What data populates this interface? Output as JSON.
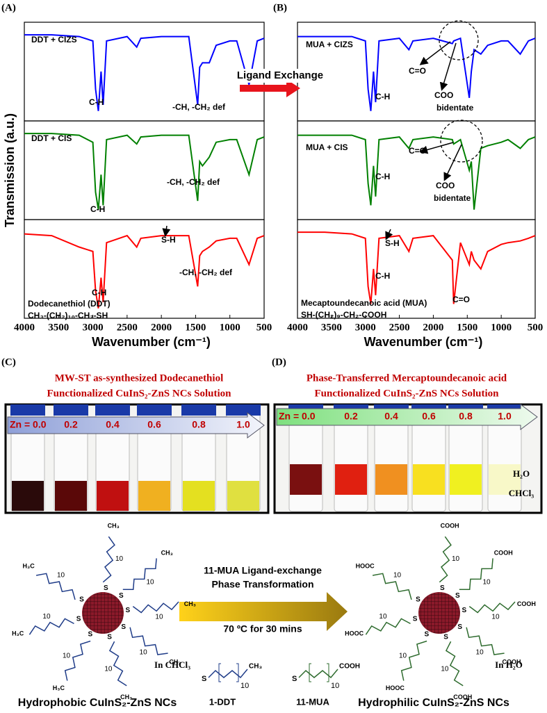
{
  "panel_labels": [
    "(A)",
    "(B)",
    "(C)",
    "(D)"
  ],
  "chart_data": [
    {
      "type": "line",
      "y_label": "Transmission (a.u.)",
      "x_label": "Wavenumber (cm⁻¹)",
      "xlim": [
        4000,
        500
      ],
      "ylim": [
        0,
        1
      ],
      "xticks": [
        4000,
        3500,
        3000,
        2500,
        2000,
        1500,
        1000,
        500
      ],
      "x": [
        4000,
        3600,
        3200,
        3000,
        2960,
        2920,
        2880,
        2850,
        2800,
        2500,
        2360,
        2300,
        2000,
        1720,
        1700,
        1600,
        1470,
        1440,
        1400,
        1300,
        1200,
        1000,
        900,
        720,
        600,
        500
      ],
      "series": [
        {
          "name": "DDT + CIZS",
          "color": "#0000ff",
          "annotations": [
            "C-H",
            "-CH, -CH₂ def"
          ],
          "values": [
            0.92,
            0.92,
            0.9,
            0.85,
            0.3,
            0.05,
            0.5,
            0.12,
            0.85,
            0.9,
            0.78,
            0.88,
            0.9,
            0.9,
            0.9,
            0.9,
            0.12,
            0.55,
            0.6,
            0.6,
            0.8,
            0.85,
            0.85,
            0.35,
            0.85,
            0.88
          ]
        },
        {
          "name": "DDT + CIS",
          "color": "#008000",
          "annotations": [
            "C-H",
            "-CH, -CH₂ def"
          ],
          "values": [
            0.92,
            0.92,
            0.9,
            0.82,
            0.25,
            0.05,
            0.45,
            0.1,
            0.85,
            0.9,
            0.8,
            0.88,
            0.9,
            0.9,
            0.9,
            0.9,
            0.15,
            0.6,
            0.55,
            0.65,
            0.82,
            0.85,
            0.85,
            0.45,
            0.85,
            0.88
          ]
        },
        {
          "name": "Dodecanethiol (DDT)",
          "formula": "CH₃-(CH₂)₁₀-CH₂-SH",
          "color": "#ff0000",
          "annotations": [
            "S-H",
            "C-H",
            "-CH, -CH₂ def"
          ],
          "values": [
            0.9,
            0.88,
            0.75,
            0.7,
            0.25,
            0.05,
            0.4,
            0.12,
            0.8,
            0.88,
            0.75,
            0.85,
            0.88,
            0.88,
            0.88,
            0.88,
            0.3,
            0.65,
            0.7,
            0.75,
            0.82,
            0.85,
            0.85,
            0.55,
            0.85,
            0.88
          ]
        }
      ]
    },
    {
      "type": "line",
      "x_label": "Wavenumber (cm⁻¹)",
      "xlim": [
        4000,
        500
      ],
      "ylim": [
        0,
        1
      ],
      "xticks": [
        4000,
        3500,
        3000,
        2500,
        2000,
        1500,
        1000,
        500
      ],
      "x": [
        4000,
        3600,
        3200,
        3000,
        2960,
        2920,
        2880,
        2850,
        2800,
        2500,
        2360,
        2300,
        2000,
        1720,
        1700,
        1600,
        1470,
        1440,
        1400,
        1300,
        1200,
        1000,
        900,
        720,
        600,
        500
      ],
      "series": [
        {
          "name": "MUA + CIZS",
          "color": "#0000ff",
          "annotations": [
            "C=O",
            "COO",
            "bidentate",
            "C-H"
          ],
          "values": [
            0.9,
            0.9,
            0.9,
            0.85,
            0.3,
            0.05,
            0.5,
            0.15,
            0.85,
            0.88,
            0.75,
            0.85,
            0.88,
            0.82,
            0.85,
            0.88,
            0.2,
            0.5,
            0.75,
            0.7,
            0.8,
            0.85,
            0.85,
            0.7,
            0.85,
            0.88
          ]
        },
        {
          "name": "MUA + CIS",
          "color": "#008000",
          "annotations": [
            "C=O",
            "C-H",
            "COO",
            "bidentate"
          ],
          "values": [
            0.9,
            0.9,
            0.9,
            0.85,
            0.35,
            0.1,
            0.55,
            0.2,
            0.85,
            0.88,
            0.75,
            0.85,
            0.88,
            0.85,
            0.8,
            0.85,
            0.5,
            0.6,
            0.05,
            0.75,
            0.78,
            0.82,
            0.85,
            0.75,
            0.85,
            0.88
          ]
        },
        {
          "name": "Mecaptoundecanoic acid (MUA)",
          "formula": "SH-(CH₂)₉-CH₂-COOH",
          "color": "#ff0000",
          "annotations": [
            "S-H",
            "C-H",
            "C=O"
          ],
          "values": [
            0.92,
            0.92,
            0.9,
            0.85,
            0.3,
            0.1,
            0.5,
            0.2,
            0.85,
            0.88,
            0.7,
            0.85,
            0.88,
            0.6,
            0.1,
            0.8,
            0.55,
            0.7,
            0.6,
            0.5,
            0.7,
            0.78,
            0.8,
            0.82,
            0.85,
            0.88
          ]
        }
      ]
    }
  ],
  "ligand_exchange": "Ligand Exchange",
  "photos": [
    {
      "title": [
        "MW-ST as-synthesized Dodecanethiol",
        "Functionalized CuInS₂-ZnS NCs Solution"
      ],
      "zn_labels": [
        "Zn = 0.0",
        "0.2",
        "0.4",
        "0.6",
        "0.8",
        "1.0"
      ],
      "vial_colors": [
        "#2a0a0a",
        "#5a0808",
        "#c01010",
        "#f0b020",
        "#e4e020",
        "#e0e040"
      ]
    },
    {
      "title": [
        "Phase-Transferred Mercaptoundecanoic acid",
        "Functionalized CuInS₂-ZnS NCs Solution"
      ],
      "zn_labels": [
        "Zn = 0.0",
        "0.2",
        "0.4",
        "0.6",
        "0.8",
        "1.0"
      ],
      "vial_colors": [
        "#7a1010",
        "#e02010",
        "#f09020",
        "#f8e020",
        "#f0f020",
        "#f8f8c8"
      ],
      "layers": [
        "H₂O",
        "CHCl₃"
      ]
    }
  ],
  "scheme": {
    "condition": [
      "11-MUA Ligand-exchange",
      "Phase Transformation",
      "70 ºC for 30 mins"
    ],
    "left": {
      "solvent": "In CHCl₃",
      "caption": "Hydrophobic CuInS₂-ZnS NCs",
      "head": "S",
      "repeat": "10",
      "end_groups": [
        "CH₃",
        "CH₃",
        "CH₃",
        "CH₃",
        "CH₃",
        "H₃C",
        "H₃C",
        "H₃C"
      ]
    },
    "right": {
      "solvent": "In H₂O",
      "caption": "Hydrophilic CuInS₂-ZnS NCs",
      "head": "S",
      "repeat": "10",
      "end_groups": [
        "COOH",
        "COOH",
        "COOH",
        "COOH",
        "COOH",
        "HOOC",
        "HOOC",
        "HOOC"
      ]
    },
    "legend": [
      {
        "name": "1-DDT",
        "head": "S",
        "repeat": "10",
        "end": "CH₃"
      },
      {
        "name": "11-MUA",
        "head": "S",
        "repeat": "10",
        "end": "COOH"
      }
    ]
  }
}
